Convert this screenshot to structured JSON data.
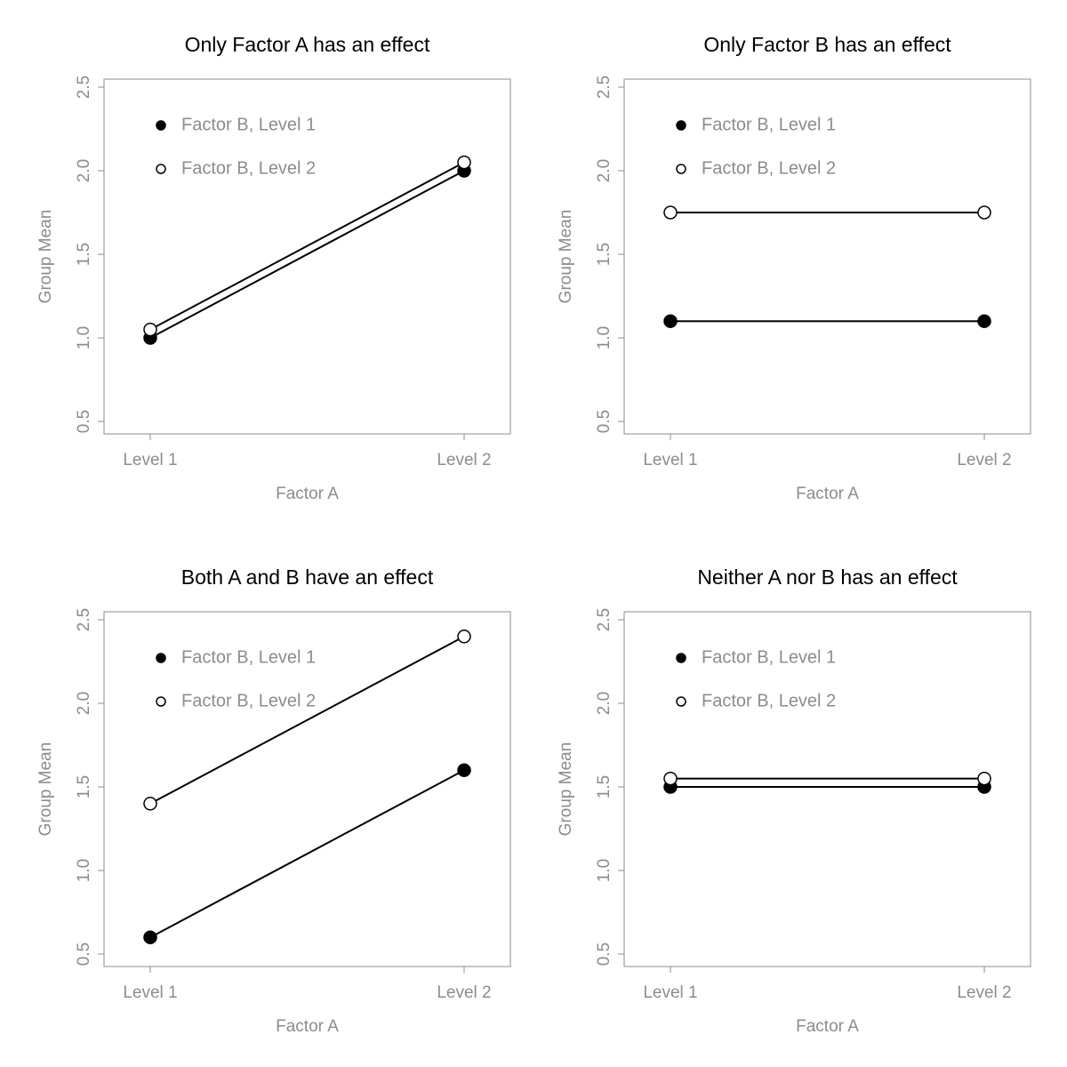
{
  "chart_data": [
    {
      "type": "line",
      "title": "Only Factor A has an effect",
      "xlabel": "Factor A",
      "ylabel": "Group Mean",
      "categories": [
        "Level 1",
        "Level 2"
      ],
      "ylim": [
        0.5,
        2.5
      ],
      "yticks": [
        "0.5",
        "1.0",
        "1.5",
        "2.0",
        "2.5"
      ],
      "legend_position": "top-left",
      "series": [
        {
          "name": "Factor B, Level 1",
          "marker": "filled",
          "values": [
            1.0,
            2.0
          ]
        },
        {
          "name": "Factor B, Level 2",
          "marker": "open",
          "values": [
            1.05,
            2.05
          ]
        }
      ]
    },
    {
      "type": "line",
      "title": "Only Factor B has an effect",
      "xlabel": "Factor A",
      "ylabel": "Group Mean",
      "categories": [
        "Level 1",
        "Level 2"
      ],
      "ylim": [
        0.5,
        2.5
      ],
      "yticks": [
        "0.5",
        "1.0",
        "1.5",
        "2.0",
        "2.5"
      ],
      "legend_position": "top-left",
      "series": [
        {
          "name": "Factor B, Level 1",
          "marker": "filled",
          "values": [
            1.1,
            1.1
          ]
        },
        {
          "name": "Factor B, Level 2",
          "marker": "open",
          "values": [
            1.75,
            1.75
          ]
        }
      ]
    },
    {
      "type": "line",
      "title": "Both A and B have an effect",
      "xlabel": "Factor A",
      "ylabel": "Group Mean",
      "categories": [
        "Level 1",
        "Level 2"
      ],
      "ylim": [
        0.5,
        2.5
      ],
      "yticks": [
        "0.5",
        "1.0",
        "1.5",
        "2.0",
        "2.5"
      ],
      "legend_position": "top-left",
      "series": [
        {
          "name": "Factor B, Level 1",
          "marker": "filled",
          "values": [
            0.6,
            1.6
          ]
        },
        {
          "name": "Factor B, Level 2",
          "marker": "open",
          "values": [
            1.4,
            2.4
          ]
        }
      ]
    },
    {
      "type": "line",
      "title": "Neither A nor B has an effect",
      "xlabel": "Factor A",
      "ylabel": "Group Mean",
      "categories": [
        "Level 1",
        "Level 2"
      ],
      "ylim": [
        0.5,
        2.5
      ],
      "yticks": [
        "0.5",
        "1.0",
        "1.5",
        "2.0",
        "2.5"
      ],
      "legend_position": "top-left",
      "series": [
        {
          "name": "Factor B, Level 1",
          "marker": "filled",
          "values": [
            1.5,
            1.5
          ]
        },
        {
          "name": "Factor B, Level 2",
          "marker": "open",
          "values": [
            1.55,
            1.55
          ]
        }
      ]
    }
  ],
  "colors": {
    "line": "#000000",
    "axis_text": "#8c8c8c",
    "title_text": "#000000"
  }
}
